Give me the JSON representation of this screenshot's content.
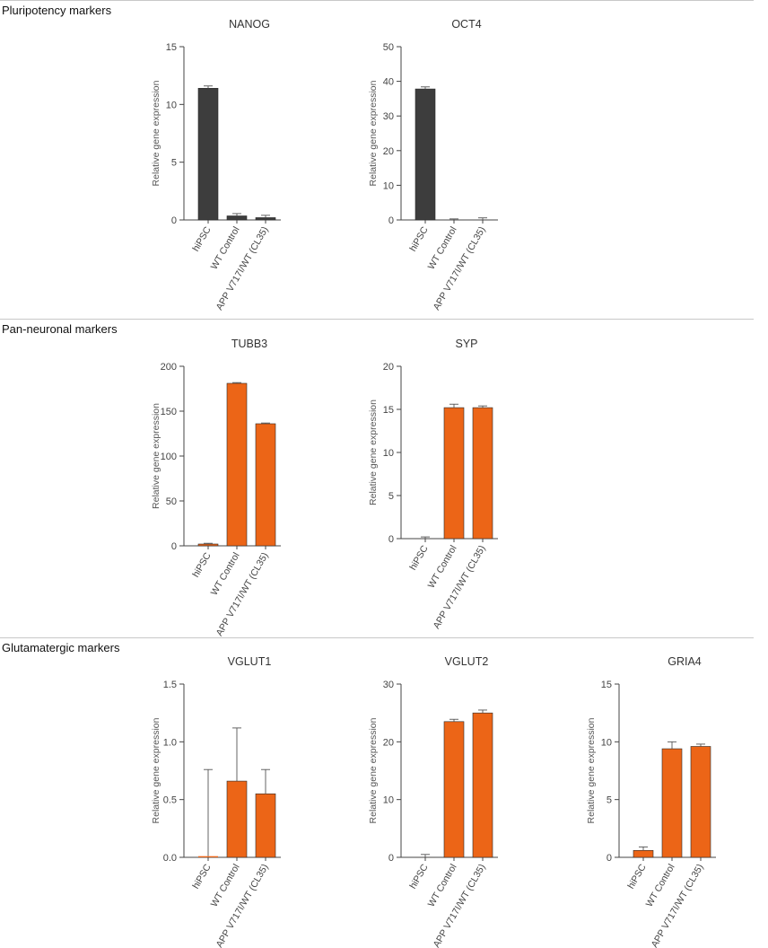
{
  "sections": [
    {
      "title": "Pluripotency markers"
    },
    {
      "title": "Pan-neuronal markers"
    },
    {
      "title": "Glutamatergic markers"
    }
  ],
  "colors": {
    "dark": "#3d3d3d",
    "orange": "#ec6517",
    "axis": "#444444",
    "error": "#555555"
  },
  "chart_data": [
    {
      "type": "bar",
      "title": "NANOG",
      "section": "Pluripotency markers",
      "ylabel": "Relative gene expression",
      "categories": [
        "hiPSC",
        "WT Control",
        "APP V717I/WT (CL35)"
      ],
      "values": [
        11.4,
        0.35,
        0.2
      ],
      "errors": [
        0.2,
        0.2,
        0.2
      ],
      "ylim": [
        0,
        15
      ],
      "yticks": [
        0,
        5,
        10,
        15
      ],
      "ytick_labels": [
        "0",
        "5",
        "10",
        "15"
      ],
      "color": "#3d3d3d"
    },
    {
      "type": "bar",
      "title": "OCT4",
      "section": "Pluripotency markers",
      "ylabel": "Relative gene expression",
      "categories": [
        "hiPSC",
        "WT Control",
        "APP V717I/WT (CL35)"
      ],
      "values": [
        37.8,
        0,
        0
      ],
      "errors": [
        0.6,
        0.3,
        0.6
      ],
      "ylim": [
        0,
        50
      ],
      "yticks": [
        0,
        10,
        20,
        30,
        40,
        50
      ],
      "ytick_labels": [
        "0",
        "10",
        "20",
        "30",
        "40",
        "50"
      ],
      "color": "#3d3d3d"
    },
    {
      "type": "bar",
      "title": "TUBB3",
      "section": "Pan-neuronal markers",
      "ylabel": "Relative gene expression",
      "categories": [
        "hiPSC",
        "WT Control",
        "APP V717I/WT (CL35)"
      ],
      "values": [
        2,
        181,
        136
      ],
      "errors": [
        0.8,
        0.8,
        0.8
      ],
      "ylim": [
        0,
        200
      ],
      "yticks": [
        0,
        50,
        100,
        150,
        200
      ],
      "ytick_labels": [
        "0",
        "50",
        "100",
        "150",
        "200"
      ],
      "color": "#ec6517"
    },
    {
      "type": "bar",
      "title": "SYP",
      "section": "Pan-neuronal markers",
      "ylabel": "Relative gene expression",
      "categories": [
        "hiPSC",
        "WT Control",
        "APP V717I/WT (CL35)"
      ],
      "values": [
        0,
        15.2,
        15.2
      ],
      "errors": [
        0.2,
        0.4,
        0.2
      ],
      "ylim": [
        0,
        20
      ],
      "yticks": [
        0,
        5,
        10,
        15,
        20
      ],
      "ytick_labels": [
        "0",
        "5",
        "10",
        "15",
        "20"
      ],
      "color": "#ec6517"
    },
    {
      "type": "bar",
      "title": "VGLUT1",
      "section": "Glutamatergic markers",
      "ylabel": "Relative gene expression",
      "categories": [
        "hiPSC",
        "WT Control",
        "APP V717I/WT (CL35)"
      ],
      "values": [
        0.01,
        0.66,
        0.55
      ],
      "errors": [
        0.75,
        0.46,
        0.21
      ],
      "ylim": [
        0,
        1.5
      ],
      "yticks": [
        0,
        0.5,
        1.0,
        1.5
      ],
      "ytick_labels": [
        "0.0",
        "0.5",
        "1.0",
        "1.5"
      ],
      "color": "#ec6517"
    },
    {
      "type": "bar",
      "title": "VGLUT2",
      "section": "Glutamatergic markers",
      "ylabel": "Relative gene expression",
      "categories": [
        "hiPSC",
        "WT Control",
        "APP V717I/WT (CL35)"
      ],
      "values": [
        0,
        23.5,
        25
      ],
      "errors": [
        0.5,
        0.4,
        0.5
      ],
      "ylim": [
        0,
        30
      ],
      "yticks": [
        0,
        10,
        20,
        30
      ],
      "ytick_labels": [
        "0",
        "10",
        "20",
        "30"
      ],
      "color": "#ec6517"
    },
    {
      "type": "bar",
      "title": "GRIA4",
      "section": "Glutamatergic markers",
      "ylabel": "Relative gene expression",
      "categories": [
        "hiPSC",
        "WT Control",
        "APP V717I/WT (CL35)"
      ],
      "values": [
        0.6,
        9.4,
        9.6
      ],
      "errors": [
        0.3,
        0.6,
        0.2
      ],
      "ylim": [
        0,
        15
      ],
      "yticks": [
        0,
        5,
        10,
        15
      ],
      "ytick_labels": [
        "0",
        "5",
        "10",
        "15"
      ],
      "color": "#ec6517"
    }
  ]
}
